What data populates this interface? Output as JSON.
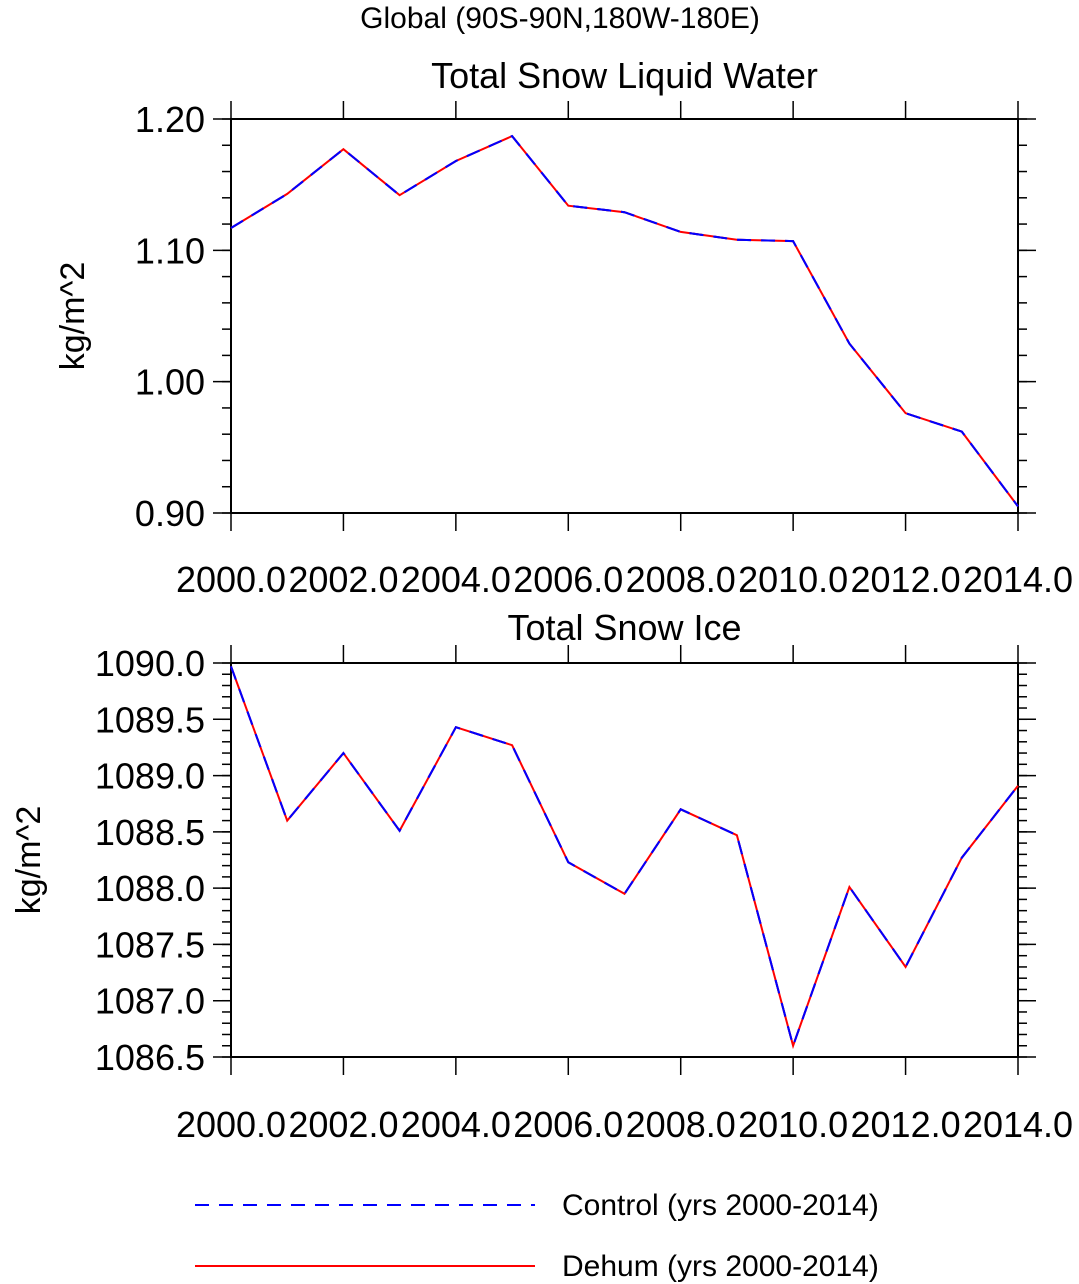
{
  "main_title": "Global (90S-90N,180W-180E)",
  "colors": {
    "control": "#0000ff",
    "dehum": "#ff0000",
    "axis": "#000000"
  },
  "legend": {
    "items": [
      {
        "label": "Control (yrs 2000-2014)",
        "style": "dashed",
        "color": "#0000ff"
      },
      {
        "label": "Dehum (yrs 2000-2014)",
        "style": "solid",
        "color": "#ff0000"
      }
    ]
  },
  "chart_data": [
    {
      "type": "line",
      "title": "Total Snow Liquid Water",
      "xlabel": "",
      "ylabel": "kg/m^2",
      "xlim": [
        2000,
        2014
      ],
      "ylim": [
        0.9,
        1.2
      ],
      "x_ticks": [
        2000,
        2002,
        2004,
        2006,
        2008,
        2010,
        2012,
        2014
      ],
      "x_tick_labels": [
        "2000.0",
        "2002.0",
        "2004.0",
        "2006.0",
        "2008.0",
        "2010.0",
        "2012.0",
        "2014.0"
      ],
      "y_ticks": [
        0.9,
        1.0,
        1.1,
        1.2
      ],
      "y_tick_labels": [
        "0.90",
        "1.00",
        "1.10",
        "1.20"
      ],
      "y_minor_step": 0.02,
      "x": [
        2000,
        2001,
        2002,
        2003,
        2004,
        2005,
        2006,
        2007,
        2008,
        2009,
        2010,
        2011,
        2012,
        2013,
        2014
      ],
      "series": [
        {
          "name": "Control (yrs 2000-2014)",
          "values": [
            1.117,
            1.143,
            1.177,
            1.142,
            1.168,
            1.187,
            1.134,
            1.129,
            1.114,
            1.108,
            1.107,
            1.029,
            0.976,
            0.962,
            0.905
          ]
        },
        {
          "name": "Dehum (yrs 2000-2014)",
          "values": [
            1.117,
            1.143,
            1.177,
            1.142,
            1.168,
            1.187,
            1.134,
            1.129,
            1.114,
            1.108,
            1.107,
            1.029,
            0.976,
            0.962,
            0.905
          ]
        }
      ]
    },
    {
      "type": "line",
      "title": "Total Snow Ice",
      "xlabel": "",
      "ylabel": "kg/m^2",
      "xlim": [
        2000,
        2014
      ],
      "ylim": [
        1086.5,
        1090.0
      ],
      "x_ticks": [
        2000,
        2002,
        2004,
        2006,
        2008,
        2010,
        2012,
        2014
      ],
      "x_tick_labels": [
        "2000.0",
        "2002.0",
        "2004.0",
        "2006.0",
        "2008.0",
        "2010.0",
        "2012.0",
        "2014.0"
      ],
      "y_ticks": [
        1086.5,
        1087.0,
        1087.5,
        1088.0,
        1088.5,
        1089.0,
        1089.5,
        1090.0
      ],
      "y_tick_labels": [
        "1086.5",
        "1087.0",
        "1087.5",
        "1088.0",
        "1088.5",
        "1089.0",
        "1089.5",
        "1090.0"
      ],
      "y_minor_step": 0.1,
      "x": [
        2000,
        2001,
        2002,
        2003,
        2004,
        2005,
        2006,
        2007,
        2008,
        2009,
        2010,
        2011,
        2012,
        2013,
        2014
      ],
      "series": [
        {
          "name": "Control (yrs 2000-2014)",
          "values": [
            1089.97,
            1088.6,
            1089.2,
            1088.51,
            1089.43,
            1089.27,
            1088.23,
            1087.95,
            1088.7,
            1088.47,
            1086.6,
            1088.01,
            1087.3,
            1088.27,
            1088.91
          ]
        },
        {
          "name": "Dehum (yrs 2000-2014)",
          "values": [
            1089.97,
            1088.6,
            1089.2,
            1088.51,
            1089.43,
            1089.27,
            1088.23,
            1087.95,
            1088.7,
            1088.47,
            1086.6,
            1088.01,
            1087.3,
            1088.27,
            1088.91
          ]
        }
      ]
    }
  ]
}
